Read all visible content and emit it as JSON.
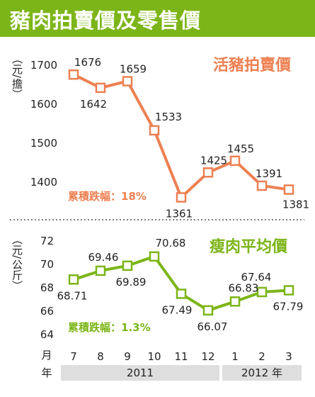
{
  "title": "豬肉拍賣價及零售價",
  "colors": {
    "green": "#7cb518",
    "orange": "#ed8052",
    "year_band": "#dedede"
  },
  "x_axis": {
    "month_label": "月",
    "year_label": "年",
    "months": [
      "7",
      "8",
      "9",
      "10",
      "11",
      "12",
      "1",
      "2",
      "3"
    ],
    "years": [
      "2011",
      "2012 年"
    ]
  },
  "chart_data": [
    {
      "type": "line",
      "title": "活豬拍賣價",
      "ylabel": "（元/擔）",
      "categories": [
        "7",
        "8",
        "9",
        "10",
        "11",
        "12",
        "1",
        "2",
        "3"
      ],
      "values": [
        1676,
        1642,
        1659,
        1533,
        1361,
        1425,
        1455,
        1391,
        1381
      ],
      "value_labels": [
        "1676",
        "1642",
        "1659",
        "1533",
        "1361",
        "1425",
        "1455",
        "1391",
        "1381"
      ],
      "yticks": [
        "1700",
        "1600",
        "1500",
        "1400"
      ],
      "ylim": [
        1340,
        1715
      ],
      "annotation": "累積跌幅：18%",
      "color": "#ed8052"
    },
    {
      "type": "line",
      "title": "瘦肉平均價",
      "ylabel": "（元/公斤）",
      "categories": [
        "7",
        "8",
        "9",
        "10",
        "11",
        "12",
        "1",
        "2",
        "3"
      ],
      "values": [
        68.71,
        69.46,
        69.89,
        70.68,
        67.49,
        66.07,
        66.83,
        67.64,
        67.79
      ],
      "value_labels": [
        "68.71",
        "69.46",
        "69.89",
        "70.68",
        "67.49",
        "66.07",
        "66.83",
        "67.64",
        "67.79"
      ],
      "yticks": [
        "72",
        "70",
        "68",
        "66",
        "64"
      ],
      "ylim": [
        63.5,
        72.5
      ],
      "annotation": "累積跌幅：1.3%",
      "color": "#7cb518"
    }
  ]
}
